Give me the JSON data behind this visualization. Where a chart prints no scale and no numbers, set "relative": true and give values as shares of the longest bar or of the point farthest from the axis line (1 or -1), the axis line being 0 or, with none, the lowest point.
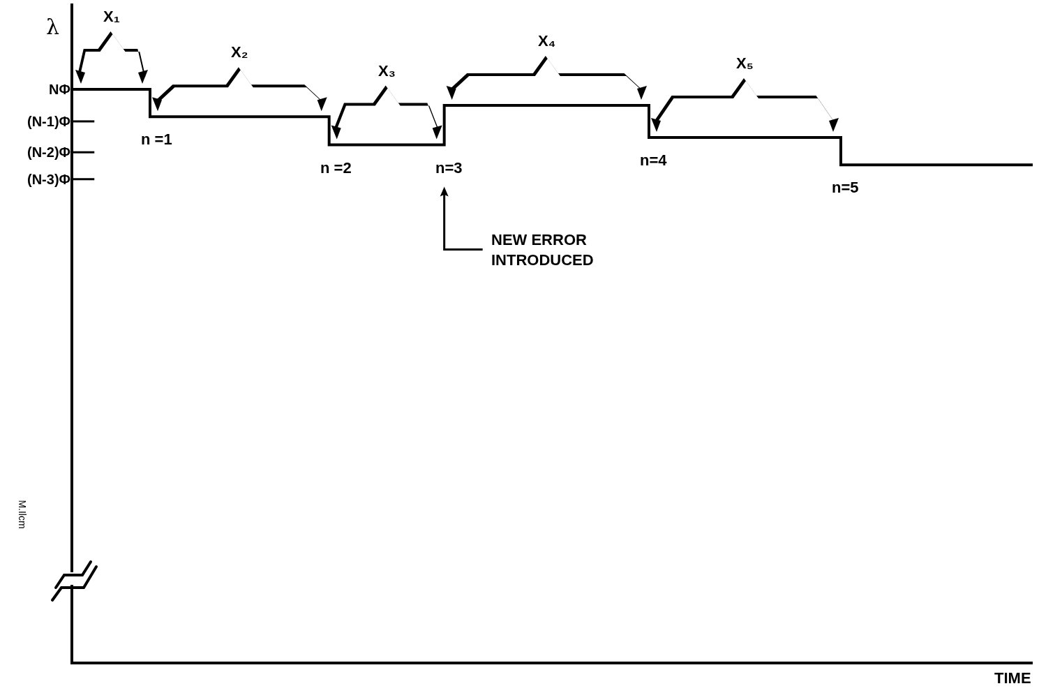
{
  "chart_data": {
    "type": "step",
    "xlabel": "TIME",
    "ylabel": "λ",
    "relative": true,
    "categories": [
      null,
      null,
      null,
      null,
      null,
      null,
      null,
      null,
      null,
      null,
      null,
      null,
      null,
      null,
      null,
      null,
      null,
      null,
      null,
      null,
      null,
      null,
      null,
      null,
      null,
      null,
      null,
      null,
      null,
      null,
      null,
      null,
      null,
      null,
      null,
      null,
      null,
      null,
      null,
      null,
      null,
      null,
      null,
      null,
      null,
      null,
      null,
      null,
      null,
      null,
      null,
      null,
      null,
      null,
      null,
      null,
      null,
      null,
      null,
      null,
      null,
      null,
      null,
      null,
      null,
      null,
      null,
      null,
      null,
      null,
      null,
      null,
      null,
      null,
      null,
      null
    ],
    "series": [
      {
        "color": "#000000",
        "values": [
          1.0,
          1.0,
          1.0,
          1.0,
          1.0,
          1.0,
          0.952,
          0.952,
          0.952,
          0.952,
          0.952,
          0.952,
          0.952,
          0.952,
          0.952,
          0.952,
          0.952,
          0.952,
          0.952,
          0.952,
          0.903,
          0.903,
          0.903,
          0.903,
          0.903,
          0.903,
          0.903,
          0.903,
          0.903,
          0.972,
          0.972,
          0.972,
          0.972,
          0.972,
          0.972,
          0.972,
          0.972,
          0.972,
          0.972,
          0.972,
          0.972,
          0.972,
          0.972,
          0.972,
          0.972,
          0.916,
          0.916,
          0.916,
          0.916,
          0.916,
          0.916,
          0.916,
          0.916,
          0.916,
          0.916,
          0.916,
          0.916,
          0.916,
          0.916,
          0.916,
          0.868,
          0.868,
          0.868,
          0.868,
          0.868,
          0.868,
          0.868,
          0.868,
          0.868,
          0.868,
          0.868,
          0.868,
          0.868,
          0.868,
          0.868,
          0.868
        ]
      }
    ],
    "ref_lines": [
      {
        "axis": "y",
        "value": 0.944,
        "label": "(N-1)Φ"
      },
      {
        "axis": "y",
        "value": 0.89,
        "label": "(N-2)Φ"
      },
      {
        "axis": "y",
        "value": 0.843,
        "label": "(N-3)Φ"
      }
    ],
    "tick_labels": false,
    "marker": "none",
    "line_style": "solid",
    "annotations": [
      "X₁",
      "X₂",
      "X₃",
      "X₄",
      "X₅",
      "n =1",
      "n =2",
      "n=3",
      "n=4",
      "n=5",
      "NEW ERROR\nINTRODUCED",
      "M.Ilcm",
      "NΦ"
    ]
  }
}
